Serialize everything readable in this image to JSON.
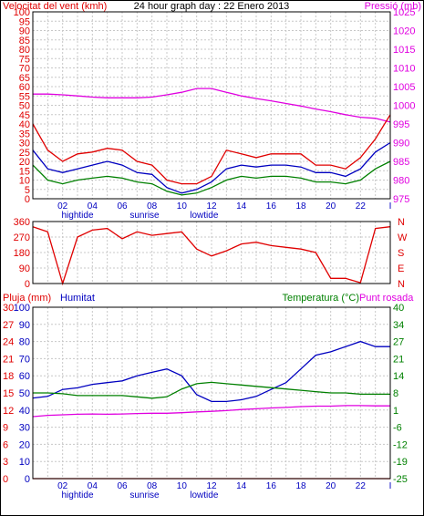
{
  "colors": {
    "wind": "#e00000",
    "pressure": "#e000e0",
    "gust": "#0000c0",
    "wind_green": "#008000",
    "direction": "#e00000",
    "rain": "#e00000",
    "humidity": "#0000c0",
    "temperature": "#008000",
    "dew_point": "#e000e0",
    "grid": "#c8c8c8",
    "frame": "#000000"
  },
  "chart_data": [
    {
      "type": "line",
      "title": "24 hour graph day : 22 Enero 2013",
      "left_label": "Velocitat del vent (kmh)",
      "right_label": "Pressió (mb)",
      "x_ticks": [
        "02",
        "04",
        "06",
        "08",
        "10",
        "12",
        "14",
        "16",
        "18",
        "20",
        "22",
        "I"
      ],
      "x_notes": [
        "hightide",
        "sunrise",
        "lowtide"
      ],
      "ylim_left": [
        0,
        100
      ],
      "yticks_left": [
        "0",
        "5",
        "10",
        "15",
        "20",
        "25",
        "30",
        "35",
        "40",
        "45",
        "50",
        "55",
        "60",
        "65",
        "70",
        "75",
        "80",
        "85",
        "90",
        "95",
        "100"
      ],
      "ylim_right": [
        975,
        1025
      ],
      "yticks_right": [
        "975",
        "980",
        "985",
        "990",
        "995",
        "1000",
        "1005",
        "1010",
        "1015",
        "1020",
        "1025"
      ],
      "x": [
        0,
        1,
        2,
        3,
        4,
        5,
        6,
        7,
        8,
        9,
        10,
        11,
        12,
        13,
        14,
        15,
        16,
        17,
        18,
        19,
        20,
        21,
        22,
        23,
        24
      ],
      "series": [
        {
          "key": "pressure",
          "axis": "right",
          "values": [
            1003.0,
            1003.0,
            1002.8,
            1002.5,
            1002.2,
            1002.0,
            1002.0,
            1002.0,
            1002.2,
            1002.8,
            1003.5,
            1004.5,
            1004.5,
            1003.5,
            1002.5,
            1001.8,
            1001.2,
            1000.5,
            999.8,
            999.0,
            998.3,
            997.5,
            996.8,
            996.5,
            995.5
          ]
        },
        {
          "key": "wind",
          "axis": "left",
          "values": [
            40,
            26,
            20,
            24,
            25,
            27,
            26,
            20,
            18,
            10,
            8,
            8,
            12,
            26,
            24,
            22,
            24,
            24,
            24,
            18,
            18,
            16,
            22,
            32,
            45
          ]
        },
        {
          "key": "gust",
          "axis": "left",
          "values": [
            26,
            16,
            14,
            16,
            18,
            20,
            18,
            14,
            13,
            6,
            3,
            5,
            9,
            16,
            18,
            17,
            18,
            18,
            17,
            14,
            14,
            12,
            16,
            25,
            30
          ]
        },
        {
          "key": "wind_green",
          "axis": "left",
          "values": [
            18,
            10,
            8,
            10,
            11,
            12,
            11,
            9,
            8,
            4,
            2,
            3,
            6,
            10,
            12,
            11,
            12,
            12,
            11,
            9,
            9,
            8,
            10,
            16,
            20
          ]
        }
      ]
    },
    {
      "type": "line",
      "left_label": "",
      "right_labels": [
        "N",
        "W",
        "S",
        "E",
        "N"
      ],
      "ylim_left": [
        0,
        360
      ],
      "yticks_left": [
        "0",
        "90",
        "180",
        "270",
        "360"
      ],
      "x": [
        0,
        1,
        2,
        3,
        4,
        5,
        6,
        7,
        8,
        9,
        10,
        11,
        12,
        13,
        14,
        15,
        16,
        17,
        18,
        19,
        20,
        21,
        22,
        23,
        24
      ],
      "series": [
        {
          "key": "direction",
          "axis": "left",
          "values": [
            330,
            300,
            0,
            270,
            310,
            320,
            260,
            300,
            280,
            290,
            300,
            200,
            160,
            190,
            230,
            240,
            220,
            210,
            200,
            180,
            30,
            30,
            5,
            320,
            330
          ]
        }
      ]
    },
    {
      "type": "line",
      "left_label": "Pluja (mm)",
      "left_label_2": "Humitat",
      "right_label": "Temperatura (°C)",
      "right_label_2": "Punt rosada",
      "x_ticks": [
        "02",
        "04",
        "06",
        "08",
        "10",
        "12",
        "14",
        "16",
        "18",
        "20",
        "22",
        "I"
      ],
      "x_notes": [
        "hightide",
        "sunrise",
        "lowtide"
      ],
      "ylim_rain": [
        0,
        30
      ],
      "yticks_rain": [
        "0",
        "3",
        "6",
        "9",
        "12",
        "15",
        "18",
        "21",
        "24",
        "27",
        "30"
      ],
      "ylim_humidity": [
        0,
        100
      ],
      "yticks_humidity": [
        "0",
        "10",
        "20",
        "30",
        "40",
        "50",
        "60",
        "70",
        "80",
        "90",
        "100"
      ],
      "ylim_temp": [
        -25,
        40
      ],
      "yticks_temp": [
        "-25",
        "-19",
        "-12",
        "-6",
        "1",
        "8",
        "14",
        "21",
        "27",
        "34",
        "40"
      ],
      "x": [
        0,
        1,
        2,
        3,
        4,
        5,
        6,
        7,
        8,
        9,
        10,
        11,
        12,
        13,
        14,
        15,
        16,
        17,
        18,
        19,
        20,
        21,
        22,
        23,
        24
      ],
      "series": [
        {
          "key": "rain",
          "axis": "rain",
          "values": [
            0,
            0,
            0,
            0,
            0,
            0,
            0,
            0,
            0,
            0,
            0,
            0,
            0,
            0,
            0,
            0,
            0,
            0,
            0,
            0,
            0,
            0,
            0,
            0,
            0
          ]
        },
        {
          "key": "humidity",
          "axis": "humidity",
          "values": [
            47,
            48,
            52,
            53,
            55,
            56,
            57,
            60,
            62,
            64,
            60,
            49,
            45,
            45,
            46,
            48,
            52,
            56,
            64,
            72,
            74,
            77,
            80,
            77,
            77
          ]
        },
        {
          "key": "temperature",
          "axis": "temp",
          "values": [
            7.5,
            7.5,
            7.2,
            6.5,
            6.5,
            6.5,
            6.5,
            6.0,
            5.5,
            6.0,
            9.0,
            11.0,
            11.5,
            11.0,
            10.5,
            10.0,
            9.5,
            9.0,
            8.5,
            8.0,
            7.5,
            7.5,
            7.0,
            7.0,
            7.0
          ]
        },
        {
          "key": "dew_point",
          "axis": "temp",
          "values": [
            -1.5,
            -1.0,
            -0.8,
            -0.6,
            -0.5,
            -0.6,
            -0.5,
            -0.3,
            -0.2,
            -0.2,
            0.0,
            0.3,
            0.5,
            0.8,
            1.2,
            1.5,
            1.8,
            2.0,
            2.3,
            2.5,
            2.5,
            2.7,
            2.7,
            2.6,
            2.6
          ]
        }
      ]
    }
  ]
}
